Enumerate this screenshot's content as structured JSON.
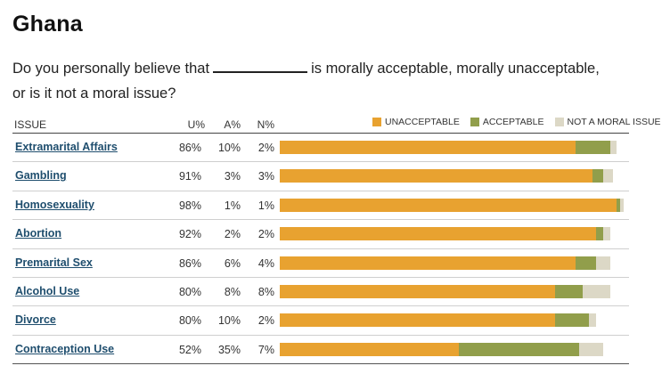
{
  "title": "Ghana",
  "question": {
    "before": "Do you personally believe that",
    "after": "is morally acceptable, morally unacceptable,",
    "line2": "or is it not a moral issue?"
  },
  "headers": {
    "issue": "ISSUE",
    "u": "U%",
    "a": "A%",
    "n": "N%"
  },
  "legend": {
    "unacceptable": "UNACCEPTABLE",
    "acceptable": "ACCEPTABLE",
    "not_moral": "NOT A MORAL ISSUE"
  },
  "colors": {
    "unacceptable": "#e8a230",
    "acceptable": "#919e4b",
    "not_moral": "#dcd8c6"
  },
  "chart_data": {
    "type": "bar",
    "stacked": true,
    "orientation": "horizontal",
    "title": "Ghana",
    "categories": [
      "Extramarital Affairs",
      "Gambling",
      "Homosexuality",
      "Abortion",
      "Premarital Sex",
      "Alcohol Use",
      "Divorce",
      "Contraception Use"
    ],
    "series": [
      {
        "name": "UNACCEPTABLE",
        "values": [
          86,
          91,
          98,
          92,
          86,
          80,
          80,
          52
        ]
      },
      {
        "name": "ACCEPTABLE",
        "values": [
          10,
          3,
          1,
          2,
          6,
          8,
          10,
          35
        ]
      },
      {
        "name": "NOT A MORAL ISSUE",
        "values": [
          2,
          3,
          1,
          2,
          4,
          8,
          2,
          7
        ]
      }
    ],
    "labels": {
      "u": [
        "86%",
        "91%",
        "98%",
        "92%",
        "86%",
        "80%",
        "80%",
        "52%"
      ],
      "a": [
        "10%",
        "3%",
        "1%",
        "2%",
        "6%",
        "8%",
        "10%",
        "35%"
      ],
      "n": [
        "2%",
        "3%",
        "1%",
        "2%",
        "4%",
        "8%",
        "2%",
        "7%"
      ]
    },
    "xlim": [
      0,
      100
    ]
  }
}
